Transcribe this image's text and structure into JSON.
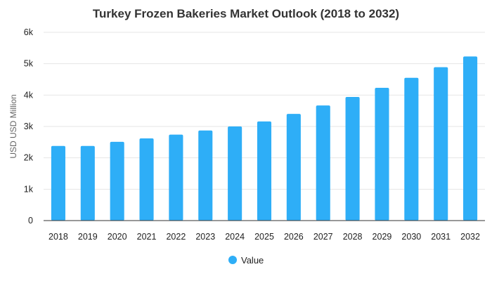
{
  "chart_data": {
    "type": "bar",
    "title": "Turkey Frozen Bakeries Market Outlook (2018 to 2032)",
    "ylabel": "USD USD Million",
    "xlabel": "",
    "categories": [
      "2018",
      "2019",
      "2020",
      "2021",
      "2022",
      "2023",
      "2024",
      "2025",
      "2026",
      "2027",
      "2028",
      "2029",
      "2030",
      "2031",
      "2032"
    ],
    "series": [
      {
        "name": "Value",
        "values": [
          2380,
          2380,
          2510,
          2620,
          2740,
          2870,
          3000,
          3160,
          3400,
          3670,
          3940,
          4230,
          4550,
          4890,
          5230
        ]
      }
    ],
    "ylim": [
      0,
      6000
    ],
    "yticks": [
      0,
      1000,
      2000,
      3000,
      4000,
      5000,
      6000
    ],
    "ytick_labels": [
      "0",
      "1k",
      "2k",
      "3k",
      "4k",
      "5k",
      "6k"
    ],
    "grid": true,
    "legend_position": "bottom",
    "colors": {
      "bar": "#2eaef7",
      "grid": "#e6e6e6",
      "axis": "#333333"
    }
  }
}
